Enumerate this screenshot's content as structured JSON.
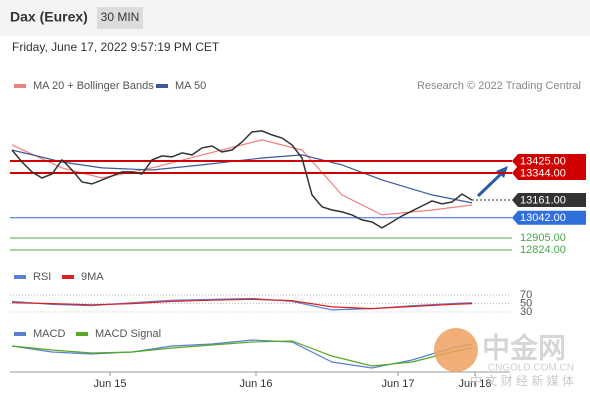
{
  "credit": "Research © 2022 Trading Central",
  "watermark": {
    "brand": "中金网",
    "site": "CNGOLD.COM.CN",
    "tagline": "中 文 财 经 新 媒 体"
  },
  "chart_data": [
    {
      "type": "line",
      "title": "Dax (Eurex)",
      "interval": "30 MIN",
      "timestamp": "Friday, June 17, 2022 9:57:19 PM CET",
      "x": [
        0,
        1,
        2,
        3,
        4,
        5,
        6,
        7,
        8,
        9,
        10,
        11,
        12,
        13,
        14,
        15,
        16,
        17,
        18,
        19,
        20,
        21,
        22,
        23,
        24,
        25,
        26,
        27,
        28,
        29,
        30,
        31,
        32,
        33,
        34,
        35,
        36,
        37,
        38,
        39,
        40,
        41,
        42,
        43,
        44,
        45,
        46
      ],
      "values": [
        13499,
        13418,
        13351,
        13310,
        13337,
        13432,
        13364,
        13283,
        13270,
        13297,
        13324,
        13351,
        13351,
        13337,
        13432,
        13459,
        13452,
        13479,
        13466,
        13513,
        13526,
        13486,
        13499,
        13553,
        13621,
        13628,
        13601,
        13580,
        13533,
        13445,
        13196,
        13115,
        13094,
        13081,
        13061,
        13027,
        13013,
        12973,
        13013,
        13054,
        13088,
        13121,
        13155,
        13135,
        13148,
        13202,
        13161
      ],
      "color": "#333333",
      "xlim": [
        -0.2,
        49.8
      ],
      "xticks": [
        {
          "value": 9.8,
          "label": "Jun 15"
        },
        {
          "value": 24.4,
          "label": "Jun 16"
        },
        {
          "value": 38.6,
          "label": "Jun 17"
        },
        {
          "value": 46.3,
          "label": "Jun 18"
        }
      ],
      "ylim": [
        12743,
        13870
      ],
      "series": [
        {
          "name": "MA 20 + Bollinger Bands",
          "color": "#f08080",
          "x": [
            0,
            5,
            9,
            14,
            19,
            25,
            29,
            33,
            37,
            42,
            46
          ],
          "values": [
            13533,
            13378,
            13310,
            13378,
            13466,
            13567,
            13499,
            13196,
            13061,
            13094,
            13128
          ]
        },
        {
          "name": "MA 50",
          "color": "#3a5a98",
          "x": [
            0,
            5,
            9,
            14,
            19,
            25,
            29,
            33,
            37,
            42,
            46
          ],
          "values": [
            13499,
            13418,
            13378,
            13364,
            13398,
            13445,
            13466,
            13398,
            13297,
            13196,
            13142
          ]
        }
      ],
      "levels": {
        "values": [
          13425,
          13344,
          13161,
          13042,
          12905,
          12824
        ],
        "value_labels": [
          "13425.00",
          "13344.00",
          "13161.00",
          "13042.00",
          "12905.00",
          "12824.00"
        ],
        "colors": [
          "#d00000",
          "#d00000",
          "#333333",
          "#2f6fdc",
          "#4aa84a",
          "#4aa84a"
        ],
        "boxed": [
          true,
          true,
          true,
          true,
          false,
          false
        ]
      }
    },
    {
      "type": "line",
      "ylim": [
        11,
        94
      ],
      "yticks": [
        70,
        50,
        30
      ],
      "xlim": [
        -0.2,
        49.8
      ],
      "series": [
        {
          "name": "RSI",
          "color": "#5b7fd6",
          "x": [
            0,
            4,
            8,
            12,
            16,
            20,
            24,
            28,
            32,
            36,
            40,
            44,
            46
          ],
          "values": [
            55,
            48,
            45,
            52,
            58,
            60,
            62,
            55,
            35,
            38,
            45,
            50,
            52
          ]
        },
        {
          "name": "9MA",
          "color": "#e02020",
          "x": [
            0,
            4,
            8,
            12,
            16,
            20,
            24,
            28,
            32,
            36,
            40,
            44,
            46
          ],
          "values": [
            52,
            50,
            47,
            50,
            55,
            58,
            60,
            57,
            42,
            38,
            43,
            48,
            50
          ]
        }
      ]
    },
    {
      "type": "line",
      "xlim": [
        -0.2,
        49.8
      ],
      "series": [
        {
          "name": "MACD",
          "color": "#5b7fd6",
          "x": [
            0,
            4,
            8,
            12,
            16,
            20,
            24,
            28,
            32,
            36,
            40,
            44,
            46
          ],
          "values": [
            0.2,
            -0.1,
            -0.2,
            -0.1,
            0.2,
            0.3,
            0.5,
            0.4,
            -0.6,
            -0.9,
            -0.5,
            0.1,
            0.3
          ]
        },
        {
          "name": "MACD Signal",
          "color": "#55aa22",
          "x": [
            0,
            4,
            8,
            12,
            16,
            20,
            24,
            28,
            32,
            36,
            40,
            44,
            46
          ],
          "values": [
            0.2,
            0,
            -0.15,
            -0.1,
            0.1,
            0.25,
            0.4,
            0.45,
            -0.3,
            -0.8,
            -0.6,
            -0.1,
            0.1
          ]
        }
      ]
    }
  ]
}
